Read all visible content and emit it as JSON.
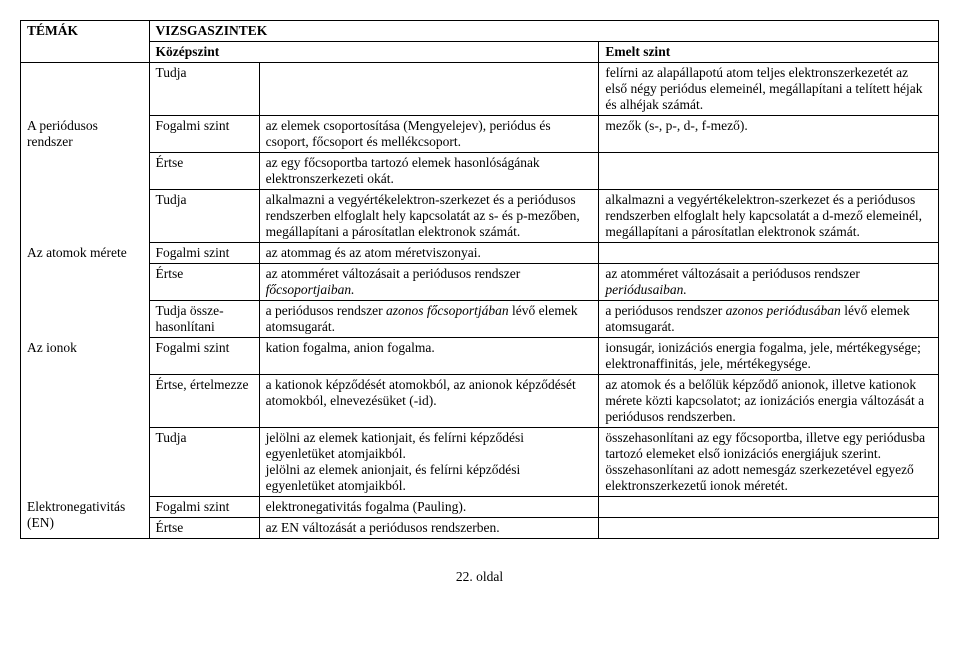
{
  "header": {
    "theme": "TÉMÁK",
    "levels": "VIZSGASZINTEK",
    "kozep": "Középszint",
    "emelt": "Emelt szint"
  },
  "rows": [
    {
      "theme": "",
      "level": "Tudja",
      "kozep": "",
      "emelt": "felírni az alapállapotú atom teljes elektronszerkezetét az első négy periódus elemeinél, megállapítani a telített héjak és alhéjak számát."
    },
    {
      "theme": "A periódusos rendszer",
      "level": "Fogalmi szint",
      "kozep": "az elemek csoportosítása (Mengyelejev), periódus és csoport, főcsoport és mellékcsoport.",
      "emelt": "mezők (s-, p-, d-, f-mező)."
    },
    {
      "theme": "",
      "level": "Értse",
      "kozep": "az egy főcsoportba tartozó elemek hasonlóságának elektronszerkezeti okát.",
      "emelt": ""
    },
    {
      "theme": "",
      "level": "Tudja",
      "kozep": "alkalmazni a vegyértékelektron-szerkezet és a periódusos rendszerben elfoglalt hely kapcsolatát az s- és p-mezőben,\nmegállapítani a párosítatlan elektronok számát.",
      "emelt": "alkalmazni a vegyértékelektron-szerkezet és a periódusos rendszerben elfoglalt hely kapcsolatát a d-mező elemeinél, megállapítani a párosítatlan elektronok számát."
    },
    {
      "theme": "Az atomok mérete",
      "level": "Fogalmi szint",
      "kozep": "az atommag és az atom méretviszonyai.",
      "emelt": ""
    },
    {
      "theme": "",
      "level": "Értse",
      "kozep_pre": "az atomméret változásait a periódusos rendszer ",
      "kozep_it": "főcsoportjaiban.",
      "emelt_pre": "az atomméret változásait a periódusos rendszer ",
      "emelt_it": "periódusaiban."
    },
    {
      "theme": "",
      "level": "Tudja össze-hasonlítani",
      "kozep_pre": "a periódusos rendszer ",
      "kozep_it": "azonos főcsoportjában",
      "kozep_post": " lévő elemek atomsugarát.",
      "emelt_pre": "a periódusos rendszer ",
      "emelt_it": "azonos periódusában",
      "emelt_post": " lévő elemek atomsugarát."
    },
    {
      "theme": "Az ionok",
      "level": "Fogalmi szint",
      "kozep": "kation fogalma, anion fogalma.",
      "emelt": "ionsugár, ionizációs energia fogalma, jele, mértékegysége; elektronaffinitás, jele, mértékegysége."
    },
    {
      "theme": "",
      "level": "Értse, értelmezze",
      "kozep": "a kationok képződését atomokból, az anionok képződését atomokból, elnevezésüket (-id).",
      "emelt": "az atomok és a belőlük képződő anionok, illetve kationok mérete közti kapcsolatot; az ionizációs energia változását a periódusos rendszerben."
    },
    {
      "theme": "",
      "level": "Tudja",
      "kozep": "jelölni az elemek kationjait, és felírni képződési egyenletüket atomjaikból.\njelölni az elemek anionjait, és felírni képződési egyenletüket atomjaikból.",
      "emelt": "összehasonlítani az egy főcsoportba, illetve egy periódusba tartozó elemeket első ionizációs energiájuk szerint.\nösszehasonlítani az adott nemesgáz szerkezetével egyező elektronszerkezetű ionok méretét."
    },
    {
      "theme": "Elektronegativitás (EN)",
      "level": "Fogalmi szint",
      "kozep": "elektronegativitás fogalma (Pauling).",
      "emelt": ""
    },
    {
      "theme": "",
      "level": "Értse",
      "kozep": "az EN változását a periódusos rendszerben.",
      "emelt": ""
    }
  ],
  "footer": "22. oldal"
}
